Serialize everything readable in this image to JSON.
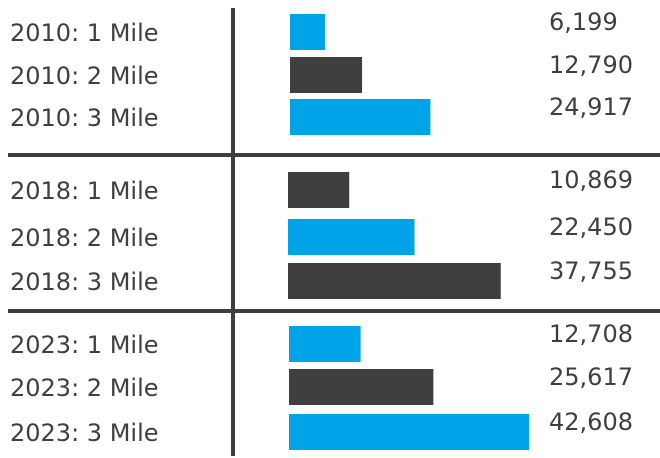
{
  "chart_data": {
    "type": "bar",
    "orientation": "horizontal",
    "groups": [
      {
        "categories": [
          "2010: 1 Mile",
          "2010: 2 Mile",
          "2010: 3 Mile"
        ],
        "values": [
          6199,
          12790,
          24917
        ],
        "value_labels": [
          "6,199",
          "12,790",
          "24,917"
        ]
      },
      {
        "categories": [
          "2018: 1 Mile",
          "2018: 2 Mile",
          "2018: 3 Mile"
        ],
        "values": [
          10869,
          22450,
          37755
        ],
        "value_labels": [
          "10,869",
          "22,450",
          "37,755"
        ]
      },
      {
        "categories": [
          "2023: 1 Mile",
          "2023: 2 Mile",
          "2023: 3 Mile"
        ],
        "values": [
          12708,
          25617,
          42608
        ],
        "value_labels": [
          "12,708",
          "25,617",
          "42,608"
        ]
      }
    ],
    "bar_colors": [
      [
        "#00a3e8",
        "#3f3f41",
        "#00a3e8"
      ],
      [
        "#3f3f41",
        "#00a3e8",
        "#3f3f41"
      ],
      [
        "#00a3e8",
        "#3f3f41",
        "#00a3e8"
      ]
    ],
    "divider_color": "#3f3f41",
    "text_color": "#3f3f41",
    "title": "",
    "xlabel": "",
    "ylabel": ""
  }
}
